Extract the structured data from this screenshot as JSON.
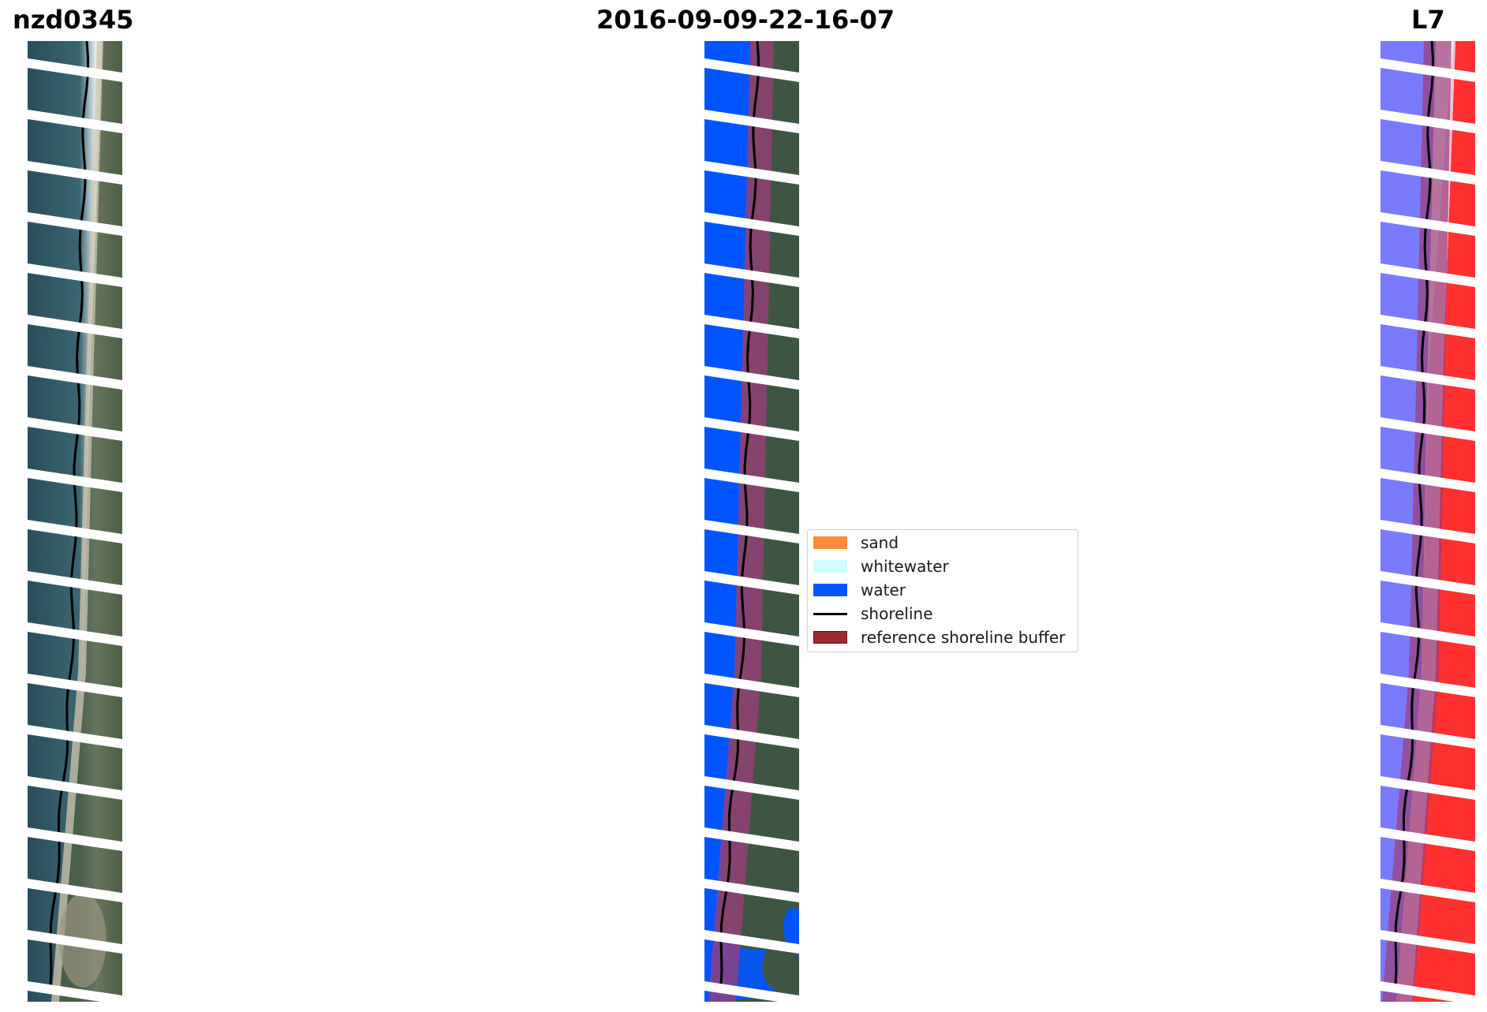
{
  "titles": {
    "site": "nzd0345",
    "date": "2016-09-09-22-16-07",
    "satellite": "L7"
  },
  "legend": {
    "items": [
      {
        "label": "sand",
        "kind": "patch",
        "color": "#ff8c3a"
      },
      {
        "label": "whitewater",
        "kind": "patch",
        "color": "#ccffff"
      },
      {
        "label": "water",
        "kind": "patch",
        "color": "#0055ff"
      },
      {
        "label": "shoreline",
        "kind": "line",
        "color": "#000000"
      },
      {
        "label": "reference shoreline buffer",
        "kind": "patch",
        "color": "#9c2a30",
        "border": "#6e1015"
      }
    ]
  },
  "colors": {
    "ocean": "#2f5661",
    "land": "#4a5d4a",
    "classified_water": "#0055ff",
    "buffer": "#9a3f7a",
    "mndwi_water": "#7a7aff",
    "mndwi_land": "#ff3030",
    "shoreline": "#000000",
    "scan_gap": "#ffffff"
  }
}
